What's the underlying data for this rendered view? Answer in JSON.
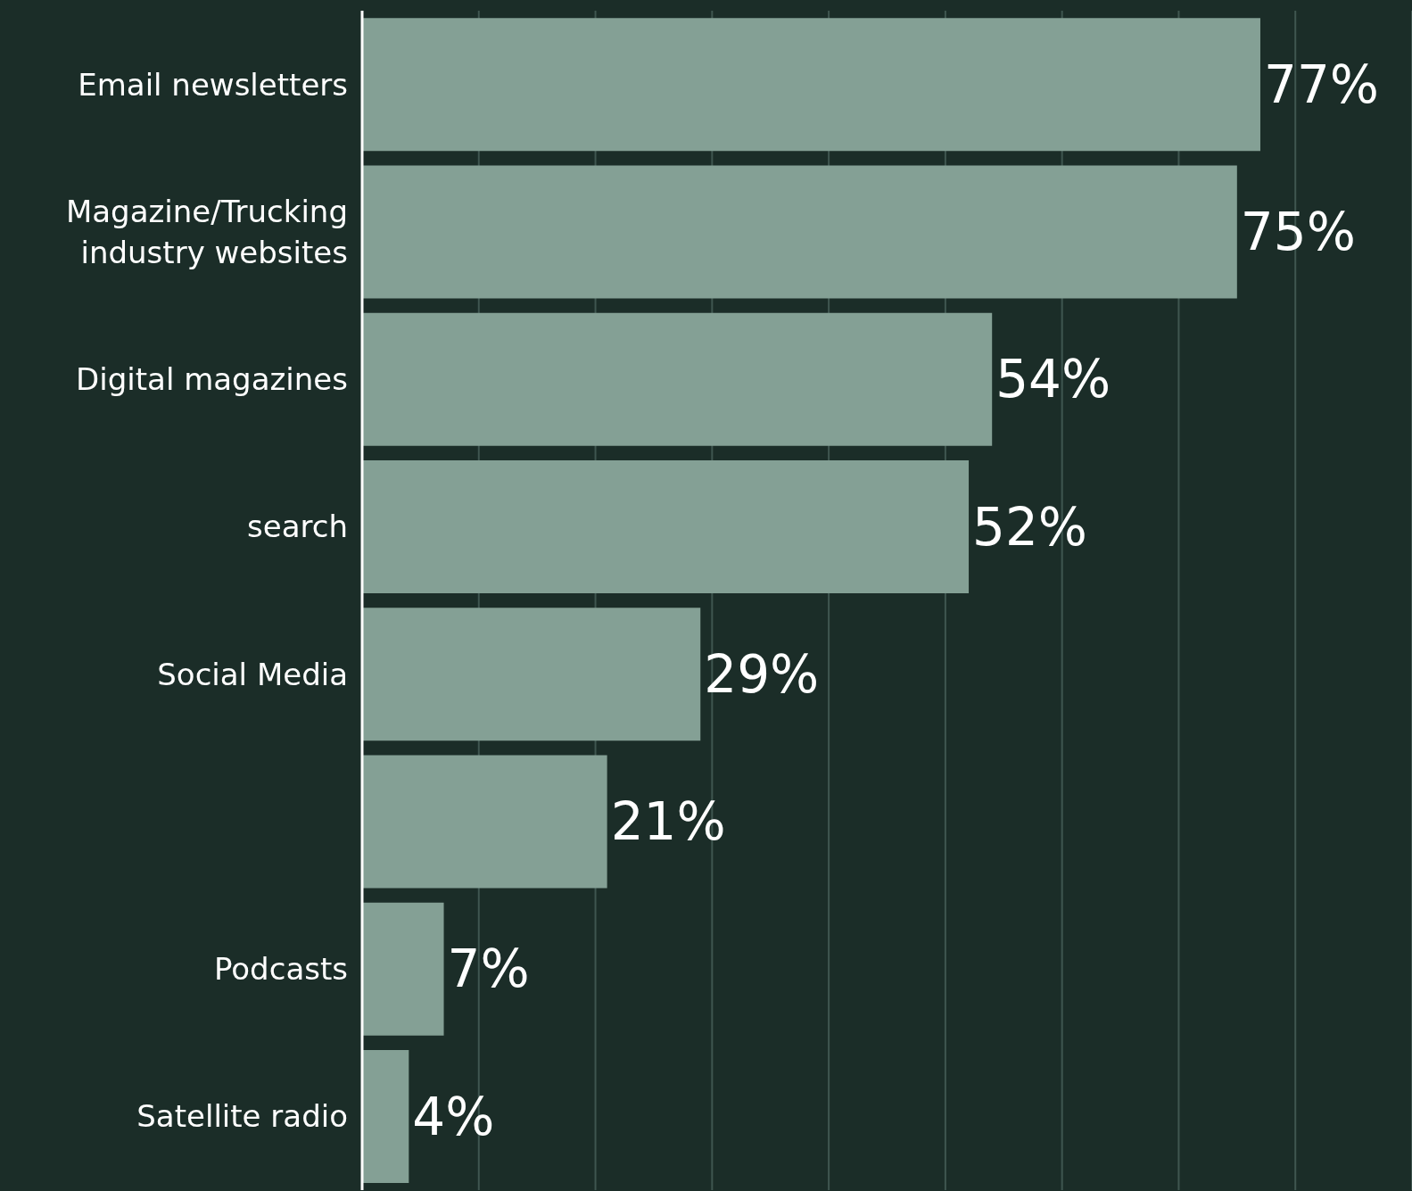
{
  "chart_data": {
    "type": "bar",
    "orientation": "horizontal",
    "categories": [
      "Email newsletters",
      "Magazine/Trucking industry websites",
      "Digital magazines",
      "search",
      "Social Media",
      null,
      "Podcasts",
      "Satellite radio"
    ],
    "values": [
      77,
      75,
      54,
      52,
      29,
      21,
      7,
      4
    ],
    "value_labels": [
      "77%",
      "75%",
      "54%",
      "52%",
      "29%",
      "21%",
      "7%",
      "4%"
    ],
    "color": "#84a095",
    "xlim": [
      0,
      90
    ],
    "xticks": [
      {
        "value": 0,
        "label": null
      },
      {
        "value": 10,
        "label": null
      },
      {
        "value": 20,
        "label": null
      },
      {
        "value": 30,
        "label": null
      },
      {
        "value": 40,
        "label": null
      },
      {
        "value": 50,
        "label": null
      },
      {
        "value": 60,
        "label": null
      },
      {
        "value": 70,
        "label": null
      },
      {
        "value": 80,
        "label": null
      }
    ],
    "grid": "x",
    "tick_labels": "y",
    "legend": false
  }
}
